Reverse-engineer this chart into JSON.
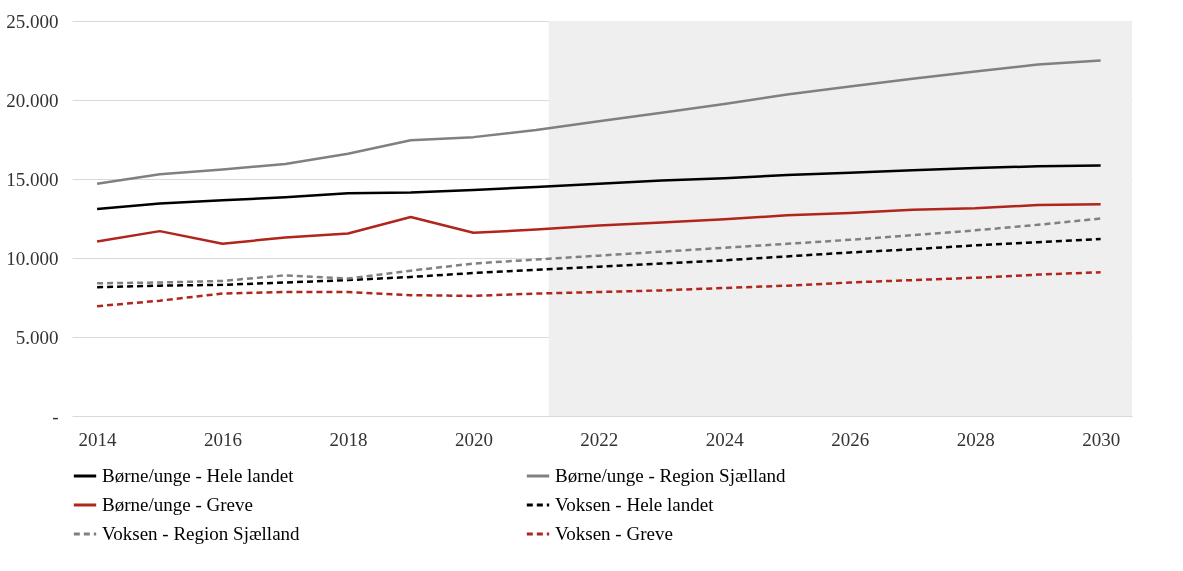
{
  "chart_data": {
    "type": "line",
    "x": [
      2014,
      2015,
      2016,
      2017,
      2018,
      2019,
      2020,
      2021,
      2022,
      2023,
      2024,
      2025,
      2026,
      2027,
      2028,
      2029,
      2030
    ],
    "series": [
      {
        "name": "Børne/unge - Hele landet",
        "color": "#000000",
        "line_style": "solid",
        "values": [
          13100,
          13450,
          13650,
          13850,
          14100,
          14150,
          14300,
          14500,
          14700,
          14900,
          15050,
          15250,
          15400,
          15550,
          15700,
          15800,
          15850
        ]
      },
      {
        "name": "Børne/unge - Region Sjælland",
        "color": "#808080",
        "line_style": "solid",
        "values": [
          14700,
          15300,
          15600,
          15950,
          16600,
          17450,
          17650,
          18100,
          18650,
          19200,
          19750,
          20350,
          20850,
          21350,
          21800,
          22250,
          22500
        ]
      },
      {
        "name": "Børne/unge - Greve",
        "color": "#b0251c",
        "line_style": "solid",
        "values": [
          11050,
          11700,
          10900,
          11300,
          11550,
          12600,
          11600,
          11800,
          12050,
          12250,
          12450,
          12700,
          12850,
          13050,
          13150,
          13350,
          13400
        ]
      },
      {
        "name": "Voksen - Hele landet",
        "color": "#000000",
        "line_style": "dashed",
        "values": [
          8150,
          8250,
          8300,
          8450,
          8600,
          8800,
          9050,
          9250,
          9450,
          9650,
          9850,
          10100,
          10350,
          10550,
          10800,
          11000,
          11200
        ]
      },
      {
        "name": "Voksen - Region Sjælland",
        "color": "#808080",
        "line_style": "dashed",
        "values": [
          8400,
          8450,
          8550,
          8900,
          8700,
          9200,
          9650,
          9900,
          10150,
          10400,
          10650,
          10900,
          11150,
          11450,
          11750,
          12100,
          12500
        ]
      },
      {
        "name": "Voksen - Greve",
        "color": "#b0251c",
        "line_style": "dashed",
        "values": [
          6950,
          7300,
          7750,
          7850,
          7850,
          7650,
          7600,
          7750,
          7850,
          7950,
          8100,
          8250,
          8450,
          8600,
          8750,
          8950,
          9100
        ]
      }
    ],
    "xlim": [
      2013.6,
      2030.5
    ],
    "xticks": [
      2014,
      2016,
      2018,
      2020,
      2022,
      2024,
      2026,
      2028,
      2030
    ],
    "ylim": [
      0,
      25000
    ],
    "yticks": [
      {
        "value": 0,
        "label": "-"
      },
      {
        "value": 5000,
        "label": "5.000"
      },
      {
        "value": 10000,
        "label": "10.000"
      },
      {
        "value": 15000,
        "label": "15.000"
      },
      {
        "value": 20000,
        "label": "20.000"
      },
      {
        "value": 25000,
        "label": "25.000"
      }
    ],
    "bands": [
      {
        "axis": "x",
        "from": 2021.2,
        "to": 2030.5,
        "color": "#efefef"
      }
    ],
    "grid": "y",
    "legend": "bottom"
  }
}
